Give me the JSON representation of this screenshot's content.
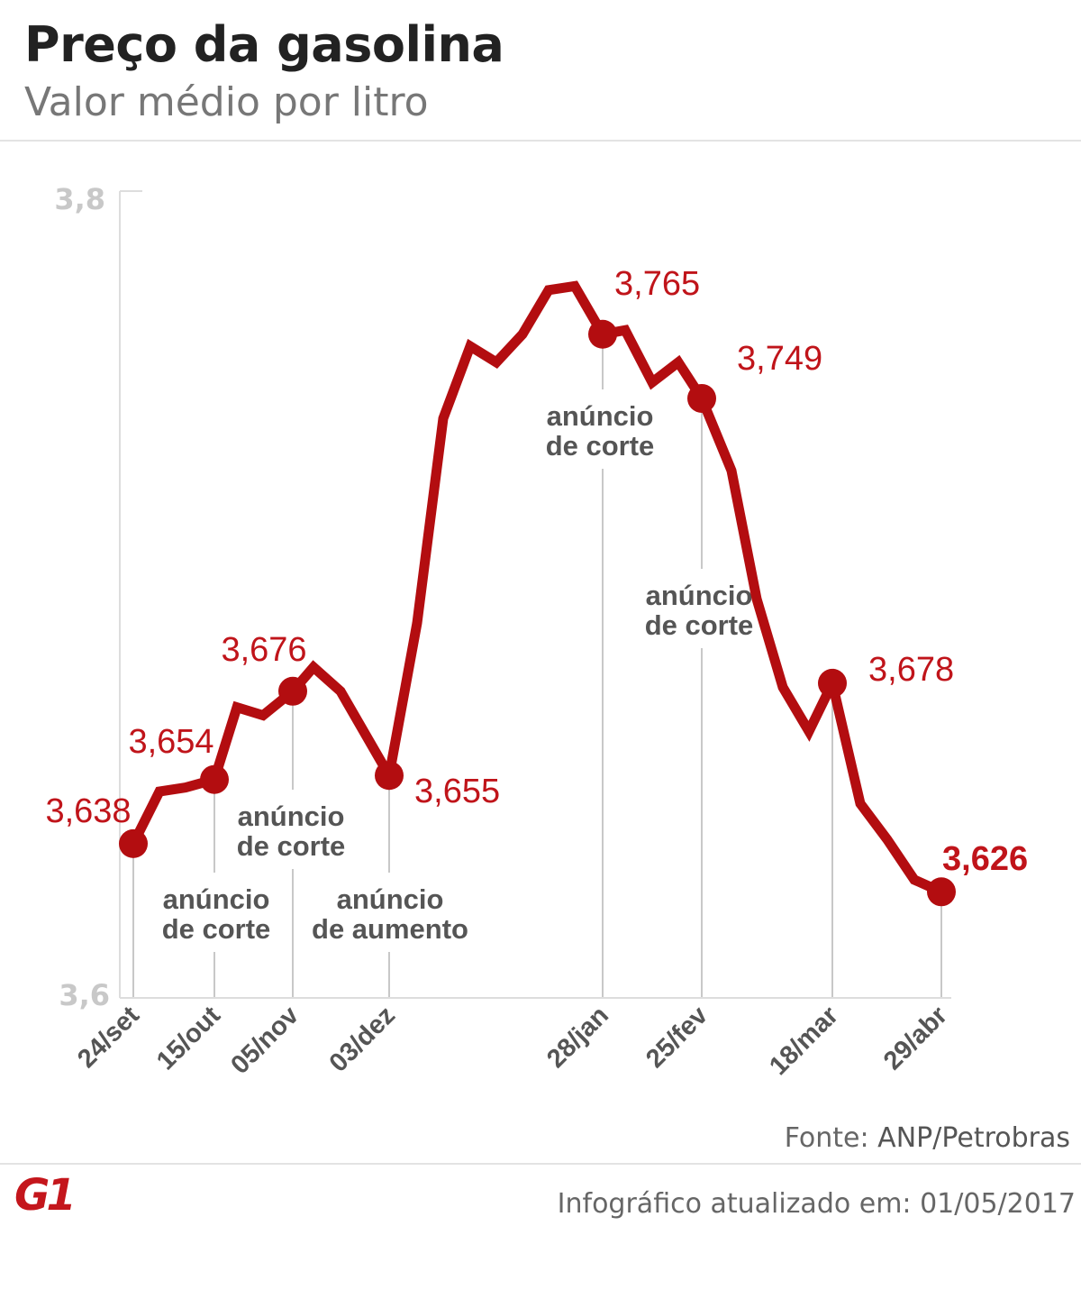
{
  "header": {
    "title": "Preço da gasolina",
    "subtitle": "Valor médio por litro"
  },
  "footer": {
    "source_label": "Fonte:",
    "source_value": "ANP/Petrobras",
    "logo": "G1",
    "updated": "Infográfico atualizado em: 01/05/2017"
  },
  "colors": {
    "line": "#b30d10",
    "label": "#c0141a",
    "annotation": "#555555",
    "guide": "#c8c8c8"
  },
  "chart_data": {
    "type": "line",
    "title": "Preço da gasolina",
    "subtitle": "Valor médio por litro",
    "ylim": [
      3.6,
      3.8
    ],
    "y_ticks": [
      "3,8",
      "3,6"
    ],
    "grid": false,
    "values": [
      3.638,
      3.651,
      3.652,
      3.654,
      3.672,
      3.67,
      3.676,
      3.682,
      3.676,
      3.655,
      3.693,
      3.744,
      3.762,
      3.758,
      3.765,
      3.776,
      3.777,
      3.765,
      3.766,
      3.753,
      3.758,
      3.749,
      3.731,
      3.699,
      3.677,
      3.666,
      3.678,
      3.648,
      3.639,
      3.629,
      3.626
    ],
    "x_ticks": [
      {
        "index": 0,
        "label": "24/set"
      },
      {
        "index": 3,
        "label": "15/out"
      },
      {
        "index": 6,
        "label": "05/nov"
      },
      {
        "index": 9,
        "label": "03/dez"
      },
      {
        "index": 17,
        "label": "28/jan"
      },
      {
        "index": 21,
        "label": "25/fev"
      },
      {
        "index": 26,
        "label": "18/mar"
      },
      {
        "index": 30,
        "label": "29/abr"
      }
    ],
    "markers": [
      {
        "index": 0,
        "label": "3,638"
      },
      {
        "index": 3,
        "label": "3,654"
      },
      {
        "index": 6,
        "label": "3,676"
      },
      {
        "index": 9,
        "label": "3,655"
      },
      {
        "index": 17,
        "label": "3,765"
      },
      {
        "index": 21,
        "label": "3,749"
      },
      {
        "index": 26,
        "label": "3,678"
      },
      {
        "index": 30,
        "label": "3,626"
      }
    ],
    "annotations": [
      {
        "index": 3,
        "lines": [
          "anúncio",
          "de corte"
        ]
      },
      {
        "index": 6,
        "lines": [
          "anúncio",
          "de corte"
        ]
      },
      {
        "index": 9,
        "lines": [
          "anúncio",
          "de aumento"
        ]
      },
      {
        "index": 17,
        "lines": [
          "anúncio",
          "de corte"
        ]
      },
      {
        "index": 21,
        "lines": [
          "anúncio",
          "de corte"
        ]
      }
    ]
  }
}
